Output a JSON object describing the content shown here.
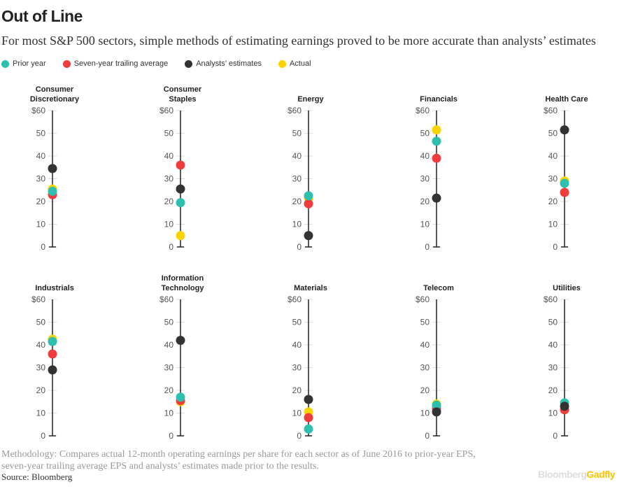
{
  "header": {
    "title": "Out of Line",
    "subtitle": "For most S&P 500 sectors, simple methods of estimating earnings proved to be more accurate than analysts’ estimates"
  },
  "footer": {
    "methodology": "Methodology: Compares actual 12-month operating earnings per share for each sector as of June 2016 to prior-year EPS, seven-year trailing average EPS and analysts’ estimates made prior to the results.",
    "source": "Source: Bloomberg",
    "logo": "BloombergGadfly"
  },
  "chart_data": {
    "type": "scatter",
    "ylim": [
      0,
      60
    ],
    "yticks": [
      "0",
      "10",
      "20",
      "30",
      "40",
      "50",
      "$60"
    ],
    "legend_position": "top-left",
    "series": [
      {
        "name": "Prior year",
        "color": "#2ebfae"
      },
      {
        "name": "Seven-year trailing average",
        "color": "#f03c3c"
      },
      {
        "name": "Analysts’ estimates",
        "color": "#333333"
      },
      {
        "name": "Actual",
        "color": "#fad400"
      }
    ],
    "panels": [
      {
        "sector": [
          "Consumer",
          "Discretionary"
        ],
        "prior": 24.5,
        "seven": 23,
        "analysts": 34.5,
        "actual": 25.5
      },
      {
        "sector": [
          "Consumer",
          "Staples"
        ],
        "prior": 19.5,
        "seven": 36,
        "analysts": 25.5,
        "actual": 5
      },
      {
        "sector": [
          "Energy"
        ],
        "prior": 22.5,
        "seven": 19,
        "analysts": 5,
        "actual": 21.5
      },
      {
        "sector": [
          "Financials"
        ],
        "prior": 46.5,
        "seven": 39,
        "analysts": 21.5,
        "actual": 51.5
      },
      {
        "sector": [
          "Health Care"
        ],
        "prior": 28,
        "seven": 24,
        "analysts": 51.5,
        "actual": 29
      },
      {
        "sector": [
          "Industrials"
        ],
        "prior": 41.5,
        "seven": 36,
        "analysts": 29,
        "actual": 42.5
      },
      {
        "sector": [
          "Information",
          "Technology"
        ],
        "prior": 17,
        "seven": 15.5,
        "analysts": 42,
        "actual": 15
      },
      {
        "sector": [
          "Materials"
        ],
        "prior": 3,
        "seven": 8,
        "analysts": 16,
        "actual": 10.5
      },
      {
        "sector": [
          "Telecom"
        ],
        "prior": 13.5,
        "seven": 12,
        "analysts": 10.5,
        "actual": 14
      },
      {
        "sector": [
          "Utilities"
        ],
        "prior": 14.5,
        "seven": 11.5,
        "analysts": 13,
        "actual": 11.5
      }
    ]
  }
}
